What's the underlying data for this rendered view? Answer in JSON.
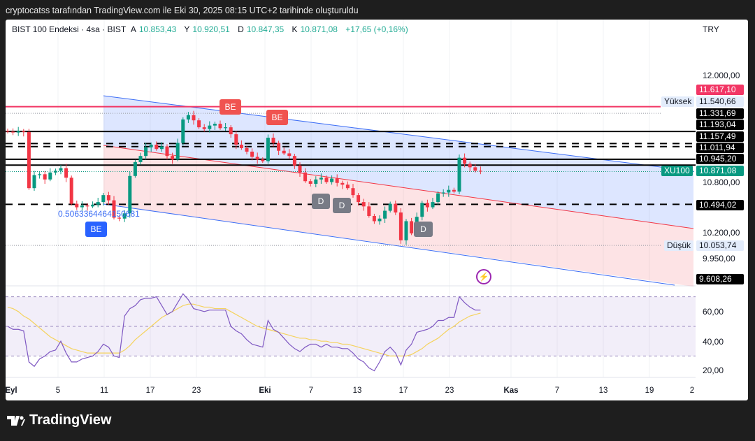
{
  "caption": "cryptocatss tarafından TradingView.com ile Eki 30, 2025 08:15 UTC+2 tarihinde oluşturuldu",
  "legend": {
    "symbol": "BIST 100 Endeksi · 4sa · BIST",
    "open_prefix": "A",
    "open": "10.853,43",
    "high_prefix": "Y",
    "high": "10.920,51",
    "low_prefix": "D",
    "low": "10.847,35",
    "close_prefix": "K",
    "close": "10.871,08",
    "change": "+17,65 (+0,16%)"
  },
  "currency": "TRY",
  "price_axis": {
    "ticks": [
      "12.000,00",
      "10.800,00",
      "10.200,00",
      "9.950,00"
    ],
    "labels": {
      "red_line": "11.617,10",
      "high_tag": "Yüksek",
      "high_value": "11.540,66",
      "l1": "11.331,69",
      "l2": "11.193,04",
      "l3": "11.157,49",
      "l4": "11.011,94",
      "l5": "10.945,20",
      "symbol_tag": "XU100",
      "last": "10.871,08",
      "l6": "10.494,02",
      "low_tag": "Düşük",
      "low_value": "10.053,74",
      "l7": "9.608,26"
    }
  },
  "rsi_axis": {
    "ticks": [
      "60,00",
      "40,00",
      "20,00"
    ]
  },
  "time_axis": [
    "Eyl",
    "5",
    "11",
    "17",
    "23",
    "Eki",
    "7",
    "13",
    "17",
    "23",
    "Kas",
    "7",
    "13",
    "19",
    "2"
  ],
  "markers": {
    "be": "BE",
    "d": "D"
  },
  "fib_text": "0.5063364464150681",
  "brand": "TradingView",
  "colors": {
    "up": "#089981",
    "down": "#f23645",
    "channel_blue": "#3d6ef5",
    "channel_red": "#f23645",
    "rsi": "#7e57c2",
    "rsi_ma": "#f5d35e",
    "resistance": "#f23665"
  },
  "chart_data": {
    "type": "candlestick",
    "ylim": [
      9608.26,
      12000
    ],
    "close": [
      11330,
      11320,
      11335,
      11325,
      10680,
      10830,
      10840,
      10780,
      10860,
      10880,
      10910,
      10800,
      10500,
      10460,
      10480,
      10470,
      10490,
      10520,
      10600,
      10540,
      10340,
      10330,
      10390,
      10820,
      10980,
      11050,
      11150,
      11180,
      11130,
      11160,
      11050,
      11010,
      11200,
      11470,
      11520,
      11460,
      11380,
      11360,
      11400,
      11420,
      11370,
      11380,
      11300,
      11180,
      11140,
      11100,
      11040,
      11010,
      10990,
      11260,
      11200,
      11110,
      11080,
      11050,
      10940,
      10860,
      10760,
      10730,
      10780,
      10800,
      10750,
      10790,
      10740,
      10720,
      10680,
      10600,
      10520,
      10470,
      10360,
      10300,
      10330,
      10420,
      10500,
      10400,
      10080,
      10300,
      10160,
      10350,
      10510,
      10460,
      10520,
      10620,
      10630,
      10660,
      10640,
      11030,
      10960,
      10920,
      10880,
      10871.08
    ],
    "levels": [
      11617.1,
      11540.66,
      11331.69,
      11193.04,
      11157.49,
      11011.94,
      10945.2,
      10871.08,
      10494.02,
      10053.74
    ],
    "rsi": [
      50,
      48,
      48,
      47,
      26,
      23,
      28,
      30,
      33,
      34,
      40,
      32,
      26,
      26,
      28,
      29,
      30,
      33,
      38,
      36,
      30,
      29,
      57,
      62,
      64,
      68,
      69,
      69,
      70,
      64,
      58,
      60,
      66,
      72,
      68,
      62,
      61,
      60,
      61,
      61,
      61,
      61,
      50,
      47,
      45,
      41,
      38,
      37,
      36,
      54,
      48,
      46,
      42,
      38,
      35,
      33,
      36,
      38,
      38,
      36,
      38,
      36,
      36,
      35,
      35,
      32,
      28,
      26,
      22,
      20,
      26,
      33,
      36,
      32,
      24,
      34,
      38,
      46,
      47,
      48,
      50,
      54,
      54,
      56,
      56,
      70,
      66,
      63,
      61,
      61
    ],
    "rsi_ma": [
      63,
      62,
      60,
      57,
      55,
      52,
      49,
      46,
      43,
      41,
      39,
      37,
      35,
      34,
      33,
      32,
      32,
      32,
      32,
      32,
      32,
      32,
      34,
      37,
      41,
      44,
      47,
      50,
      53,
      56,
      58,
      60,
      62,
      64,
      65,
      65,
      64,
      63,
      63,
      62,
      62,
      62,
      60,
      58,
      56,
      54,
      52,
      50,
      49,
      48,
      47,
      46,
      45,
      44,
      43,
      42,
      42,
      41,
      41,
      40,
      40,
      39,
      39,
      38,
      38,
      37,
      36,
      35,
      34,
      33,
      32,
      31,
      30,
      30,
      30,
      30,
      31,
      33,
      35,
      38,
      40,
      42,
      45,
      48,
      50,
      53,
      55,
      57,
      58,
      59
    ],
    "rsi_bands": [
      70,
      50,
      30
    ]
  }
}
